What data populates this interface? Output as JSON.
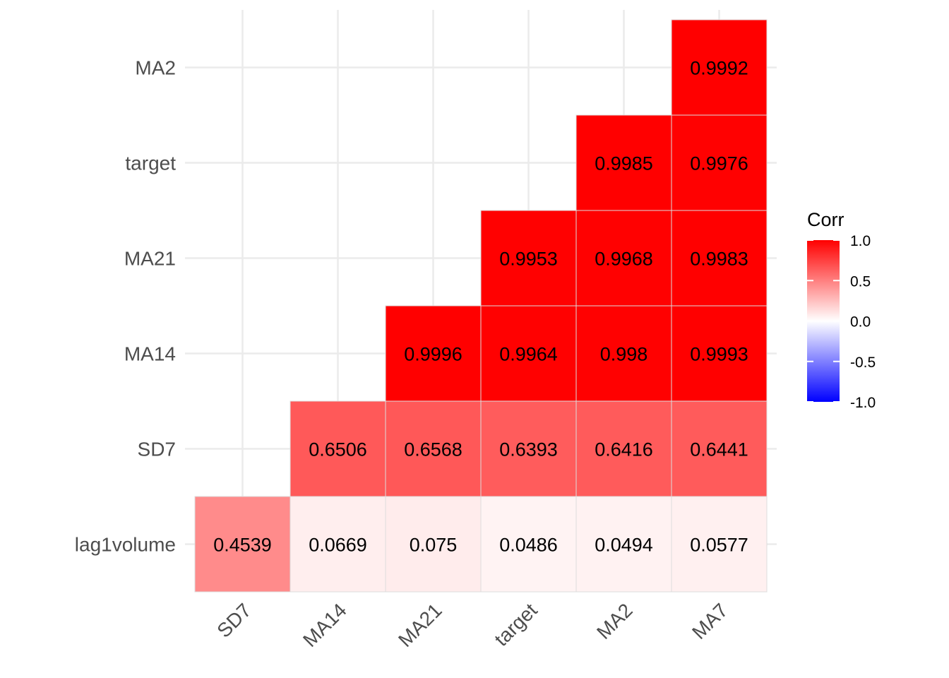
{
  "chart_data": {
    "type": "heatmap",
    "title": "",
    "x_categories": [
      "SD7",
      "MA14",
      "MA21",
      "target",
      "MA2",
      "MA7"
    ],
    "y_categories": [
      "lag1volume",
      "SD7",
      "MA14",
      "MA21",
      "target",
      "MA2"
    ],
    "cells": [
      {
        "x": "SD7",
        "y": "lag1volume",
        "value": 0.4539,
        "label": "0.4539"
      },
      {
        "x": "MA14",
        "y": "lag1volume",
        "value": 0.0669,
        "label": "0.0669"
      },
      {
        "x": "MA21",
        "y": "lag1volume",
        "value": 0.075,
        "label": "0.075"
      },
      {
        "x": "target",
        "y": "lag1volume",
        "value": 0.0486,
        "label": "0.0486"
      },
      {
        "x": "MA2",
        "y": "lag1volume",
        "value": 0.0494,
        "label": "0.0494"
      },
      {
        "x": "MA7",
        "y": "lag1volume",
        "value": 0.0577,
        "label": "0.0577"
      },
      {
        "x": "MA14",
        "y": "SD7",
        "value": 0.6506,
        "label": "0.6506"
      },
      {
        "x": "MA21",
        "y": "SD7",
        "value": 0.6568,
        "label": "0.6568"
      },
      {
        "x": "target",
        "y": "SD7",
        "value": 0.6393,
        "label": "0.6393"
      },
      {
        "x": "MA2",
        "y": "SD7",
        "value": 0.6416,
        "label": "0.6416"
      },
      {
        "x": "MA7",
        "y": "SD7",
        "value": 0.6441,
        "label": "0.6441"
      },
      {
        "x": "MA21",
        "y": "MA14",
        "value": 0.9996,
        "label": "0.9996"
      },
      {
        "x": "target",
        "y": "MA14",
        "value": 0.9964,
        "label": "0.9964"
      },
      {
        "x": "MA2",
        "y": "MA14",
        "value": 0.998,
        "label": "0.998"
      },
      {
        "x": "MA7",
        "y": "MA14",
        "value": 0.9993,
        "label": "0.9993"
      },
      {
        "x": "target",
        "y": "MA21",
        "value": 0.9953,
        "label": "0.9953"
      },
      {
        "x": "MA2",
        "y": "MA21",
        "value": 0.9968,
        "label": "0.9968"
      },
      {
        "x": "MA7",
        "y": "MA21",
        "value": 0.9983,
        "label": "0.9983"
      },
      {
        "x": "MA2",
        "y": "target",
        "value": 0.9985,
        "label": "0.9985"
      },
      {
        "x": "MA7",
        "y": "target",
        "value": 0.9976,
        "label": "0.9976"
      },
      {
        "x": "MA7",
        "y": "MA2",
        "value": 0.9992,
        "label": "0.9992"
      }
    ],
    "legend": {
      "title": "Corr",
      "placement": "right",
      "range": [
        -1,
        1
      ],
      "ticks": [
        1.0,
        0.5,
        0.0,
        -0.5,
        -1.0
      ],
      "tick_labels": [
        "1.0",
        "0.5",
        "0.0",
        "-0.5",
        "-1.0"
      ]
    },
    "colors": {
      "low": "#0000FF",
      "mid": "#FFFFFF",
      "high": "#FF0000",
      "grid": "#ebebeb"
    },
    "grid": true
  }
}
